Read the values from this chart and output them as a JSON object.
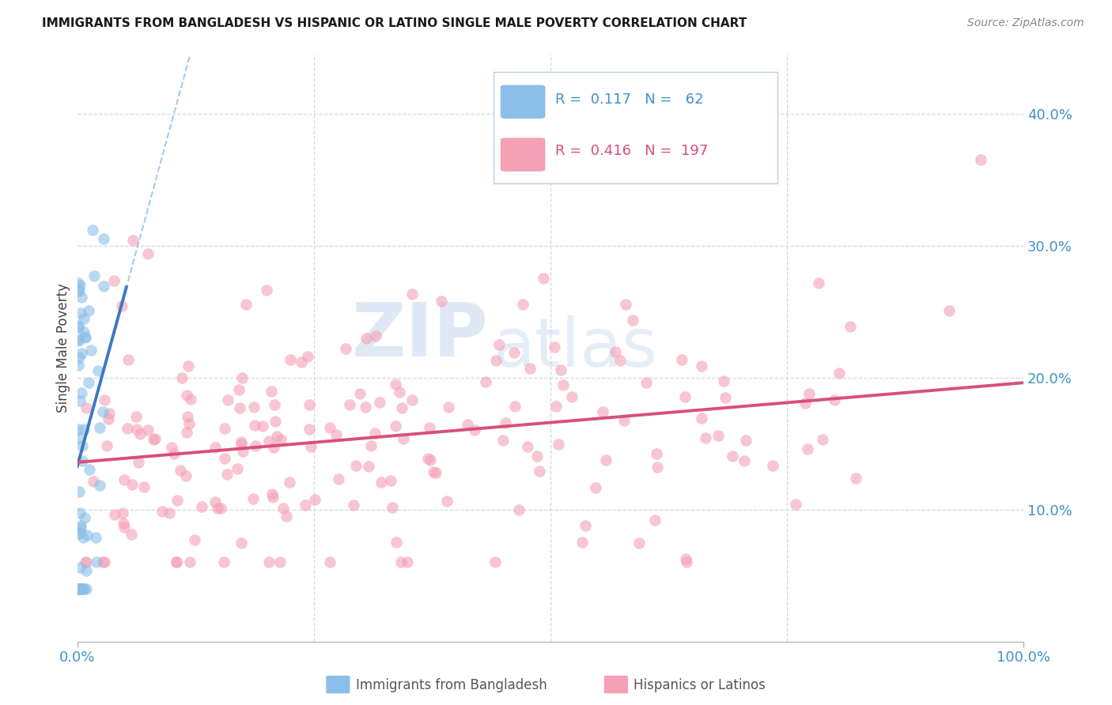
{
  "title": "IMMIGRANTS FROM BANGLADESH VS HISPANIC OR LATINO SINGLE MALE POVERTY CORRELATION CHART",
  "source": "Source: ZipAtlas.com",
  "ylabel": "Single Male Poverty",
  "yticks": [
    0.1,
    0.2,
    0.3,
    0.4
  ],
  "ytick_labels": [
    "10.0%",
    "20.0%",
    "30.0%",
    "40.0%"
  ],
  "xtick_labels": [
    "0.0%",
    "100.0%"
  ],
  "legend_label1": "Immigrants from Bangladesh",
  "legend_label2": "Hispanics or Latinos",
  "R1": "0.117",
  "N1": "62",
  "R2": "0.416",
  "N2": "197",
  "color_blue": "#8bbee8",
  "color_pink": "#f4a0b5",
  "color_blue_line": "#3a7abf",
  "color_pink_line": "#d94f7a",
  "color_blue_dashed": "#8bbee8",
  "color_axis_label": "#4292c6",
  "xlim": [
    0.0,
    1.0
  ],
  "ylim": [
    0.0,
    0.445
  ],
  "grid_color": "#d0d8e0",
  "spine_color": "#aaaaaa"
}
